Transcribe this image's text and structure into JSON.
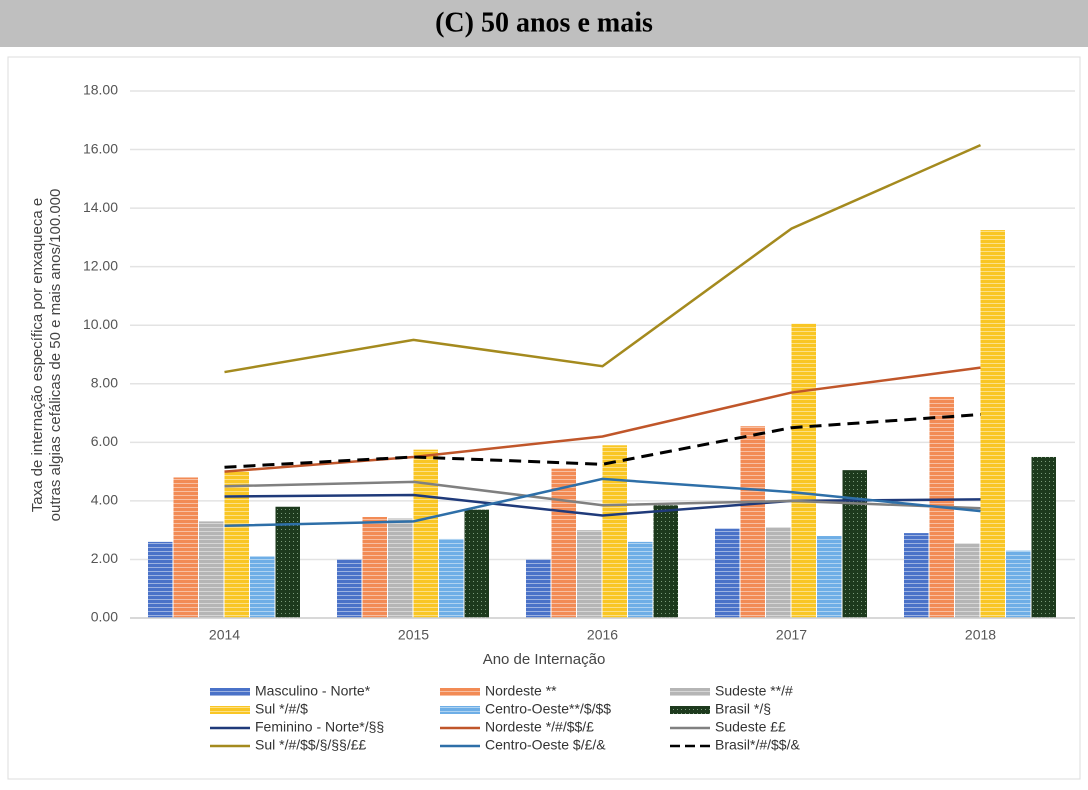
{
  "chart_data": {
    "type": "bar",
    "title": "(C) 50 anos e mais",
    "xlabel": "Ano de Internação",
    "ylabel": [
      "Taxa de internação específica por enxaqueca e",
      "outras algias cefálicas de 50 e mais anos/100.000"
    ],
    "categories": [
      "2014",
      "2015",
      "2016",
      "2017",
      "2018"
    ],
    "ylim": [
      0,
      18
    ],
    "yticks": [
      {
        "value": 0,
        "label": "0.00"
      },
      {
        "value": 2,
        "label": "2.00"
      },
      {
        "value": 4,
        "label": "4.00"
      },
      {
        "value": 6,
        "label": "6.00"
      },
      {
        "value": 8,
        "label": "8.00"
      },
      {
        "value": 10,
        "label": "10.00"
      },
      {
        "value": 12,
        "label": "12.00"
      },
      {
        "value": 14,
        "label": "14.00"
      },
      {
        "value": 16,
        "label": "16.00"
      },
      {
        "value": 18,
        "label": "18.00"
      }
    ],
    "grid": true,
    "legend": "bottom",
    "series": [
      {
        "name": "Masculino - Norte*",
        "kind": "bar",
        "color": "#4a72c8",
        "values": [
          2.6,
          2.0,
          2.0,
          3.05,
          2.9
        ]
      },
      {
        "name": "Nordeste **",
        "kind": "bar",
        "color": "#f28b55",
        "values": [
          4.8,
          3.45,
          5.1,
          6.55,
          7.55
        ]
      },
      {
        "name": "Sudeste **/#",
        "kind": "bar",
        "color": "#b5b5b5",
        "values": [
          3.3,
          3.4,
          3.0,
          3.1,
          2.55
        ]
      },
      {
        "name": "Sul */#/$",
        "kind": "bar",
        "color": "#f9c624",
        "values": [
          5.0,
          5.75,
          5.9,
          10.05,
          13.25
        ]
      },
      {
        "name": "Centro-Oeste**/$/$$",
        "kind": "bar",
        "color": "#6eaee6",
        "values": [
          2.1,
          2.7,
          2.6,
          2.8,
          2.3
        ]
      },
      {
        "name": "Brasil */§",
        "kind": "bar",
        "color": "#1d3a1d",
        "values": [
          3.8,
          3.7,
          3.85,
          5.05,
          5.5
        ]
      },
      {
        "name": "Feminino - Norte*/§§",
        "kind": "line",
        "color": "#1f3a7a",
        "values": [
          4.15,
          4.2,
          3.5,
          4.0,
          4.05
        ]
      },
      {
        "name": "Nordeste */#/$$/£",
        "kind": "line",
        "color": "#c0562a",
        "values": [
          5.0,
          5.5,
          6.2,
          7.7,
          8.55
        ]
      },
      {
        "name": "Sudeste ££",
        "kind": "line",
        "color": "#808080",
        "values": [
          4.5,
          4.65,
          3.85,
          4.0,
          3.75
        ]
      },
      {
        "name": "Sul */#/$$/§/§§/££",
        "kind": "line",
        "color": "#a48a1e",
        "values": [
          8.4,
          9.5,
          8.6,
          13.3,
          16.15
        ]
      },
      {
        "name": "Centro-Oeste $/£/&",
        "kind": "line",
        "color": "#2e6fa8",
        "values": [
          3.15,
          3.3,
          4.75,
          4.3,
          3.65
        ]
      },
      {
        "name": "Brasil*/#/$$/&",
        "kind": "line",
        "color": "#000000",
        "dash": true,
        "values": [
          5.15,
          5.5,
          5.25,
          6.5,
          6.95
        ]
      }
    ]
  }
}
